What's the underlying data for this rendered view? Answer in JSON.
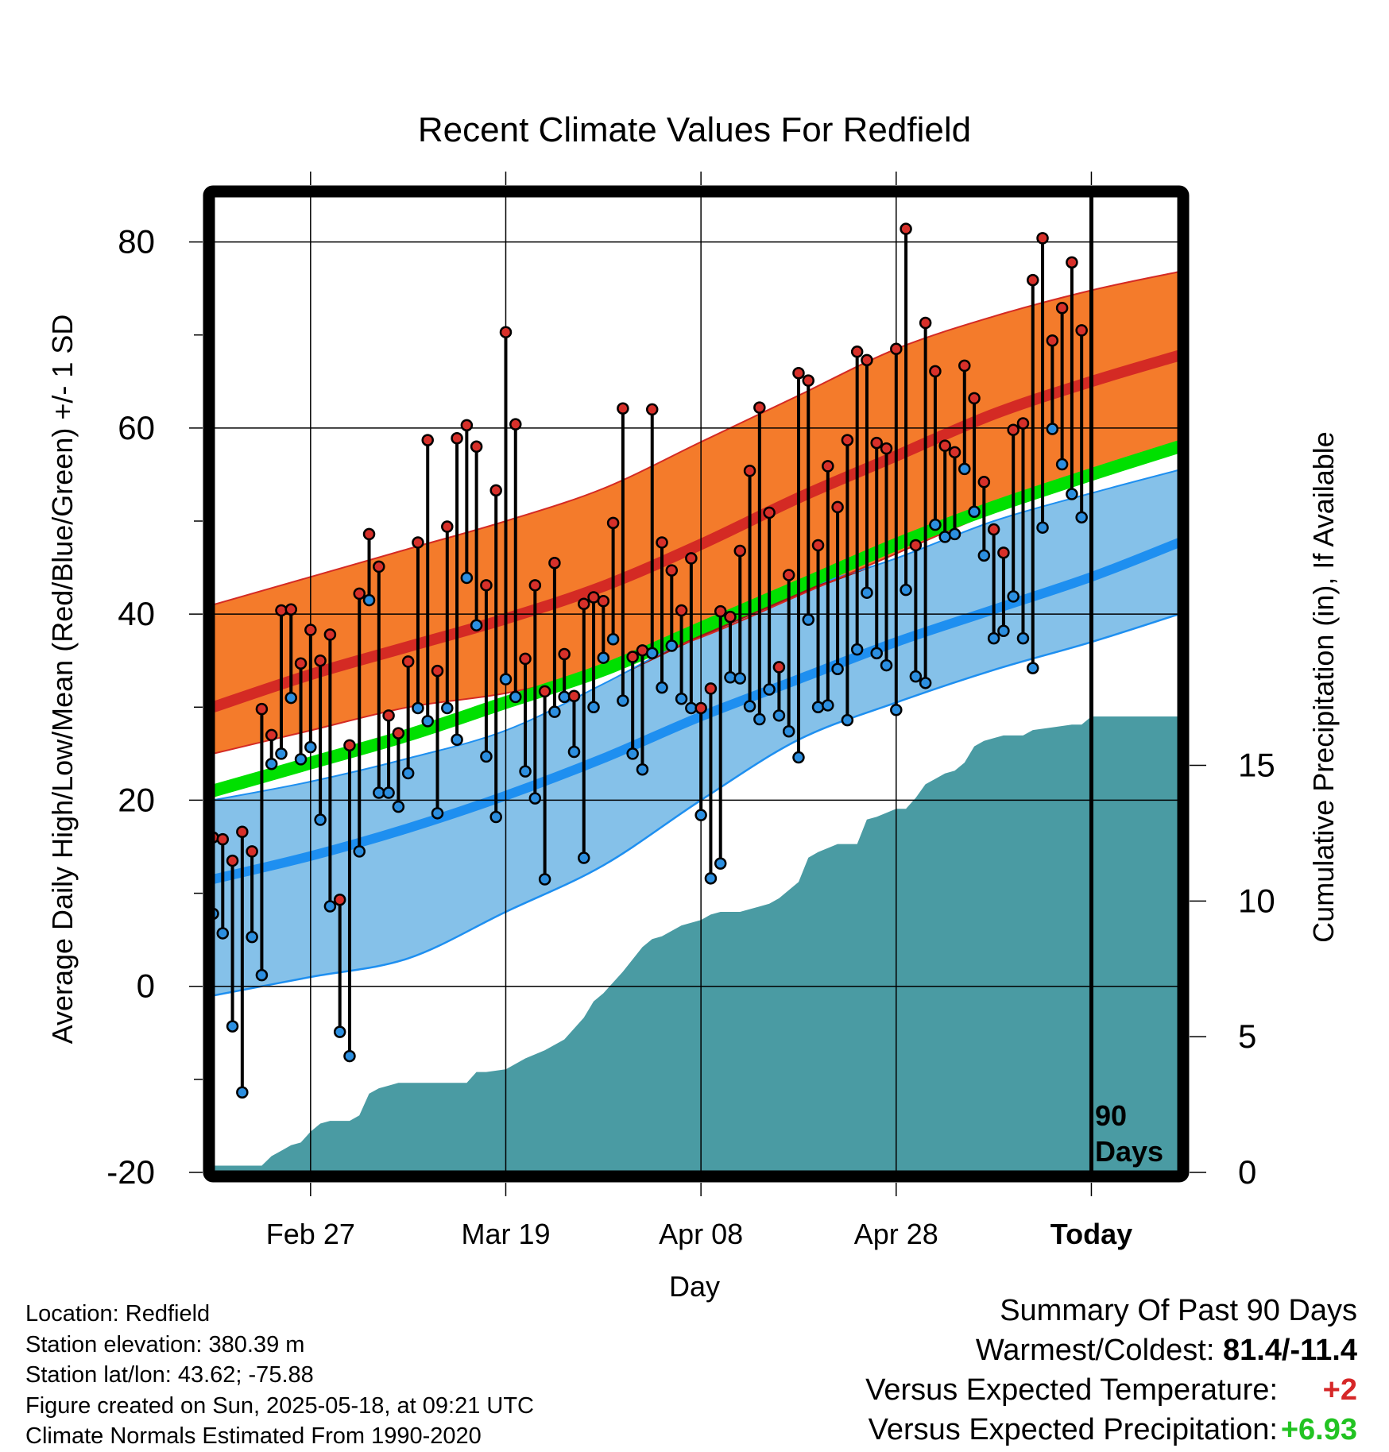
{
  "chart_data": {
    "type": "line",
    "title": "Recent Climate Values For Redfield",
    "xlabel": "Day",
    "ylabel_left": "Average Daily High/Low/Mean (Red/Blue/Green) +/- 1 SD",
    "ylabel_right": "Cumulative Precipitation (in), If Available",
    "x_ticks": [
      {
        "day": 10,
        "label": "Feb 27"
      },
      {
        "day": 30,
        "label": "Mar 19"
      },
      {
        "day": 50,
        "label": "Apr 08"
      },
      {
        "day": 70,
        "label": "Apr 28"
      },
      {
        "day": 90,
        "label": "Today"
      }
    ],
    "xlim": [
      0,
      99
    ],
    "ylim_left": [
      -20,
      85
    ],
    "yticks_left": [
      -20,
      0,
      20,
      40,
      60,
      80
    ],
    "ylim_right": [
      0,
      36
    ],
    "yticks_right": [
      0,
      5,
      10,
      15
    ],
    "today_marker": {
      "day": 90,
      "label_line1": "90",
      "label_line2": "Days"
    },
    "normal_high": {
      "x": [
        0,
        10,
        20,
        30,
        40,
        50,
        60,
        70,
        80,
        90,
        99
      ],
      "mean": [
        30,
        33.5,
        36.5,
        39.5,
        43,
        47.5,
        52.5,
        57,
        61.5,
        65,
        67.8
      ],
      "upper": [
        41,
        44,
        47,
        50,
        53.5,
        58.5,
        63.5,
        68.5,
        72,
        74.8,
        76.8
      ],
      "lower": [
        25,
        27.5,
        30,
        31.5,
        34,
        37.5,
        42,
        46.5,
        51,
        54.8,
        58
      ]
    },
    "normal_low": {
      "x": [
        0,
        10,
        20,
        30,
        40,
        50,
        60,
        70,
        80,
        90,
        99
      ],
      "mean": [
        11.5,
        14,
        17,
        20.5,
        24.5,
        29,
        33,
        37,
        40.5,
        44,
        47.7
      ],
      "upper": [
        20,
        22,
        24.5,
        27.5,
        32.5,
        38,
        42.5,
        46,
        50,
        53,
        55.5
      ],
      "lower": [
        -1,
        1,
        3,
        8,
        13,
        20,
        26.5,
        30.5,
        34,
        37,
        40
      ]
    },
    "normal_mean": {
      "x": [
        0,
        10,
        20,
        30,
        40,
        50,
        60,
        70,
        80,
        90,
        99
      ],
      "values": [
        21,
        24,
        27,
        30.5,
        34,
        38.5,
        43,
        47.5,
        51.5,
        55,
        58
      ]
    },
    "observed_high": [
      16,
      15.8,
      13.5,
      16.6,
      14.5,
      29.8,
      27,
      40.4,
      40.5,
      34.7,
      38.3,
      35,
      37.8,
      9.3,
      25.9,
      42.2,
      48.6,
      45.1,
      29.1,
      27.2,
      34.9,
      47.7,
      58.7,
      33.9,
      49.4,
      58.9,
      60.3,
      58,
      43.1,
      53.3,
      70.3,
      60.4,
      35.2,
      43.1,
      31.7,
      45.5,
      35.7,
      31.2,
      41.1,
      41.8,
      41.4,
      49.8,
      62.1,
      35.4,
      36.1,
      62,
      47.7,
      44.7,
      40.4,
      46,
      29.9,
      32,
      40.3,
      39.7,
      46.8,
      55.4,
      62.2,
      50.9,
      34.3,
      44.2,
      65.9,
      65.1,
      47.4,
      55.9,
      51.5,
      58.7,
      68.2,
      67.3,
      58.4,
      57.8,
      68.5,
      81.4,
      47.4,
      71.3,
      66.1,
      58.1,
      57.4,
      66.7,
      63.2,
      54.2,
      49.1,
      46.6,
      59.8,
      60.5,
      75.9,
      80.4,
      69.4,
      72.9,
      77.8,
      70.5
    ],
    "observed_low": [
      7.8,
      5.7,
      -4.3,
      -11.4,
      5.3,
      1.2,
      23.9,
      25,
      31,
      24.4,
      25.7,
      17.9,
      8.6,
      -4.9,
      -7.5,
      14.5,
      41.5,
      20.8,
      20.8,
      19.3,
      22.9,
      29.9,
      28.5,
      18.6,
      29.9,
      26.5,
      43.9,
      38.8,
      24.7,
      18.2,
      33,
      31.1,
      23.1,
      20.2,
      11.5,
      29.5,
      31.1,
      25.2,
      13.8,
      30,
      35.3,
      37.3,
      30.7,
      25,
      23.3,
      35.8,
      32.1,
      36.6,
      30.9,
      29.9,
      18.4,
      11.6,
      13.2,
      33.2,
      33.1,
      30.1,
      28.7,
      31.9,
      29.1,
      27.4,
      24.6,
      39.4,
      30,
      30.2,
      34.1,
      28.6,
      36.2,
      42.3,
      35.8,
      34.5,
      29.7,
      42.6,
      33.3,
      32.6,
      49.6,
      48.3,
      48.6,
      55.6,
      51,
      46.3,
      37.4,
      38.2,
      41.9,
      37.4,
      34.2,
      49.3,
      59.9,
      56.1,
      52.9,
      50.4
    ],
    "cumulative_precip": {
      "x": [
        0,
        5,
        6,
        7,
        8,
        9,
        10,
        11,
        12,
        13,
        14,
        15,
        16,
        17,
        18,
        19,
        20,
        22,
        24,
        26,
        27,
        28,
        30,
        32,
        34,
        36,
        38,
        39,
        40,
        42,
        44,
        45,
        46,
        48,
        50,
        51,
        52,
        54,
        56,
        57,
        58,
        60,
        61,
        62,
        64,
        66,
        67,
        68,
        70,
        71,
        72,
        73,
        74,
        75,
        76,
        77,
        78,
        79,
        80,
        81,
        82,
        83,
        84,
        86,
        88,
        89,
        90,
        92,
        94,
        96,
        98,
        99
      ],
      "values": [
        0.25,
        0.25,
        0.6,
        0.8,
        1.0,
        1.1,
        1.5,
        1.8,
        1.9,
        1.9,
        1.9,
        2.1,
        2.9,
        3.1,
        3.2,
        3.3,
        3.3,
        3.3,
        3.3,
        3.3,
        3.7,
        3.7,
        3.8,
        4.2,
        4.5,
        4.9,
        5.7,
        6.3,
        6.6,
        7.4,
        8.3,
        8.6,
        8.7,
        9.1,
        9.3,
        9.5,
        9.6,
        9.6,
        9.8,
        9.9,
        10.1,
        10.7,
        11.6,
        11.8,
        12.1,
        12.1,
        13.0,
        13.1,
        13.4,
        13.4,
        13.8,
        14.3,
        14.5,
        14.7,
        14.8,
        15.1,
        15.7,
        15.9,
        16.0,
        16.1,
        16.1,
        16.1,
        16.3,
        16.4,
        16.5,
        16.5,
        16.8,
        16.8,
        16.8,
        16.8,
        16.8,
        16.8
      ]
    },
    "colors": {
      "high_band": "#f47b2b",
      "high_mean": "#d42a24",
      "overlap_band": "#a01818",
      "low_band": "#85c1e9",
      "low_mean": "#1e8ff0",
      "mean_line": "#00e000",
      "precip_fill": "#4a9ba3",
      "high_dot": "#d7302a",
      "low_dot": "#2c8fe0"
    }
  },
  "footer": {
    "location": "Location: Redfield",
    "elevation": "Station elevation: 380.39 m",
    "latlon": "Station lat/lon: 43.62; -75.88",
    "created": "Figure created on Sun, 2025-05-18, at 09:21 UTC",
    "normals": "Climate Normals Estimated From 1990-2020"
  },
  "summary": {
    "heading": "Summary Of Past 90 Days",
    "warm_label": "Warmest/Coldest: ",
    "warm_value": "81.4/-11.4",
    "temp_label": "Versus Expected Temperature:",
    "temp_value": "+2",
    "precip_label": "Versus Expected Precipitation:",
    "precip_value": "+6.93"
  }
}
